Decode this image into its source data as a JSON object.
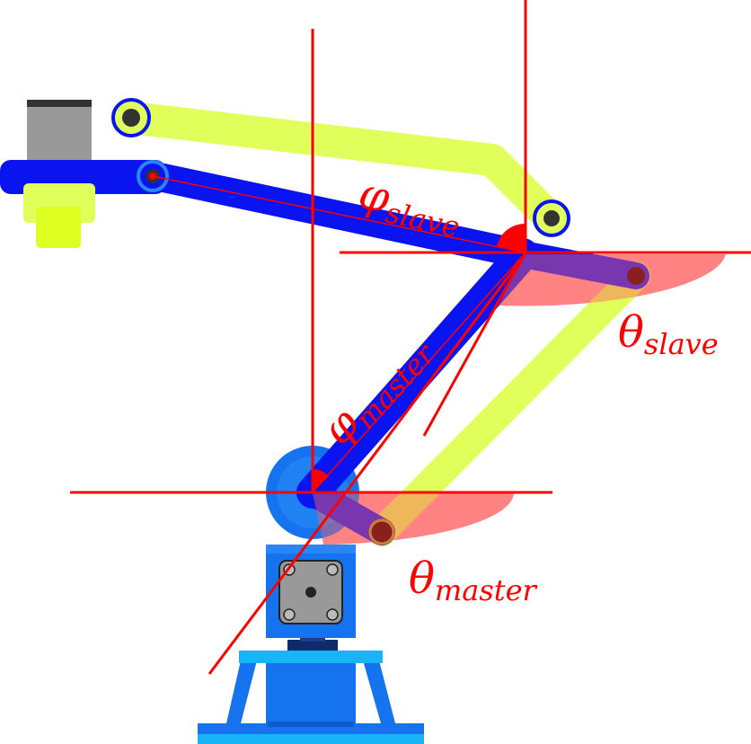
{
  "labels": {
    "phi_slave": {
      "symbol": "φ",
      "subscript": "slave"
    },
    "phi_master": {
      "symbol": "φ",
      "subscript": "master"
    },
    "theta_slave": {
      "symbol": "θ",
      "subscript": "slave"
    },
    "theta_master": {
      "symbol": "θ",
      "subscript": "master"
    }
  },
  "colors": {
    "master_arm": "#0a14f0",
    "slave_link": "#e0ff5a",
    "base_blue": "#1673f0",
    "base_light": "#19b4f5",
    "motor_gray": "#999999",
    "guide_red": "#ff0000",
    "angle_fill": "#ff8c8c",
    "joint_dark": "#333333",
    "gripper_yellow": "#ddff22"
  }
}
